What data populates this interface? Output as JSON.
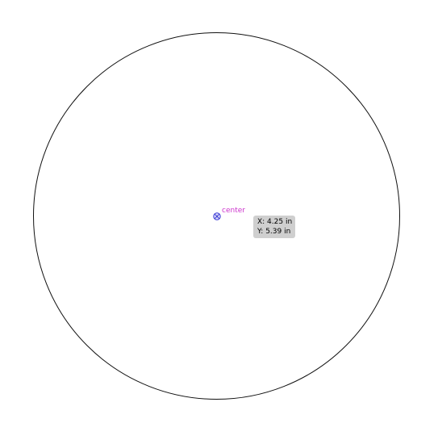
{
  "canvas": {
    "background": "#ffffff",
    "shape": {
      "type": "circle",
      "stroke_color": "#111111"
    },
    "center_marker": {
      "icon": "crosshair-circle-icon",
      "color": "#3b3bd6",
      "label": "center",
      "label_color": "#cc33cc"
    },
    "tooltip": {
      "x_text": "X: 4.25 in",
      "y_text": "Y: 5.39 in",
      "background": "#cfcfcf"
    }
  }
}
